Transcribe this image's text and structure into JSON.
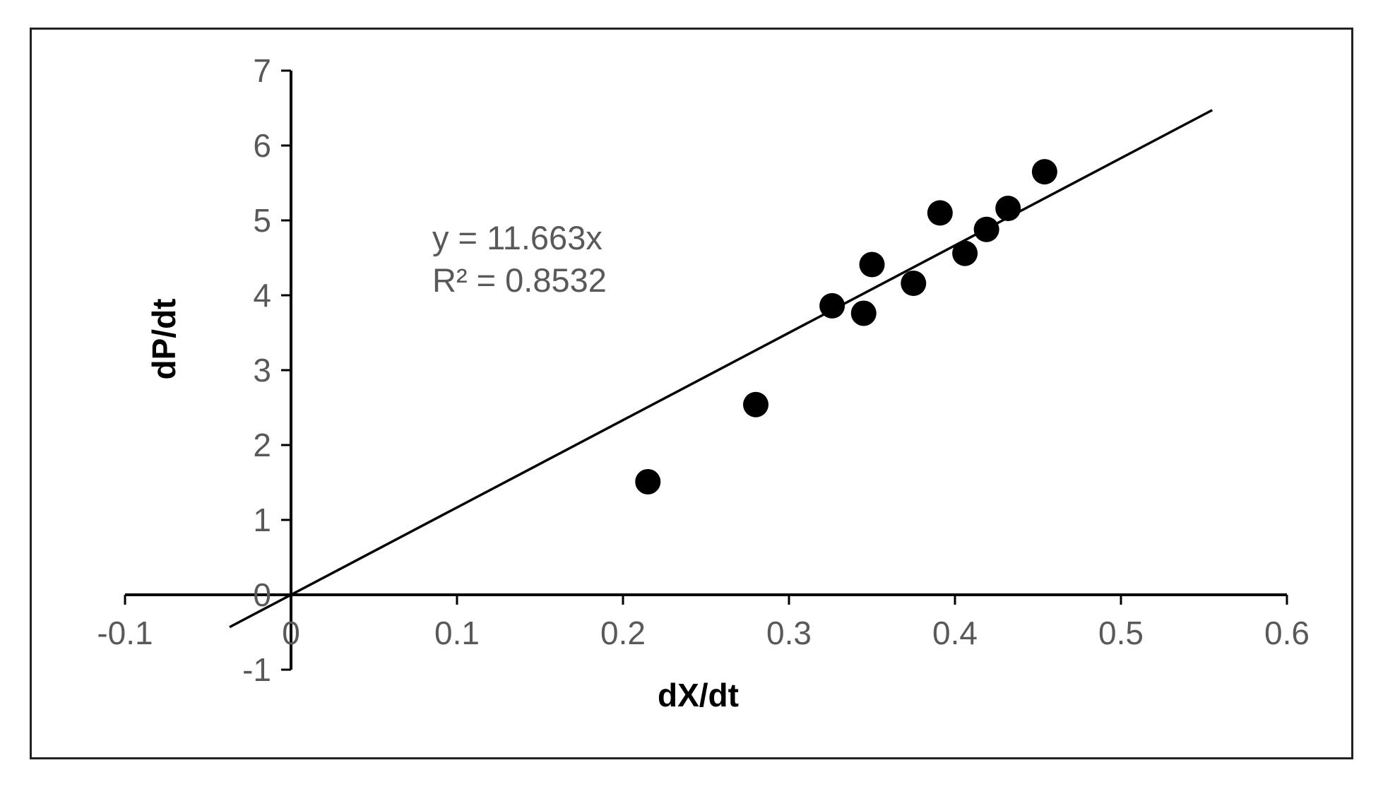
{
  "chart_data": {
    "type": "scatter",
    "xlabel": "dX/dt",
    "ylabel": "dP/dt",
    "xlim": [
      -0.1,
      0.6
    ],
    "ylim": [
      -1,
      7
    ],
    "x_ticks": [
      "-0.1",
      "0",
      "0.1",
      "0.2",
      "0.3",
      "0.4",
      "0.5",
      "0.6"
    ],
    "y_ticks": [
      "-1",
      "0",
      "1",
      "2",
      "3",
      "4",
      "5",
      "6",
      "7"
    ],
    "grid": false,
    "legend": "none",
    "series": [
      {
        "x": [
          0.215,
          0.28,
          0.326,
          0.345,
          0.35,
          0.375,
          0.391,
          0.406,
          0.419,
          0.432,
          0.454
        ],
        "y": [
          1.51,
          2.54,
          3.86,
          3.76,
          4.41,
          4.16,
          5.1,
          4.56,
          4.88,
          5.16,
          5.65
        ],
        "color": "#000000"
      }
    ],
    "trendline": {
      "slope": 11.663,
      "intercept": 0,
      "x_range": [
        -0.037,
        0.555
      ],
      "equation": "y = 11.663x",
      "r_squared": "R² = 0.8532",
      "color": "#000000"
    }
  }
}
